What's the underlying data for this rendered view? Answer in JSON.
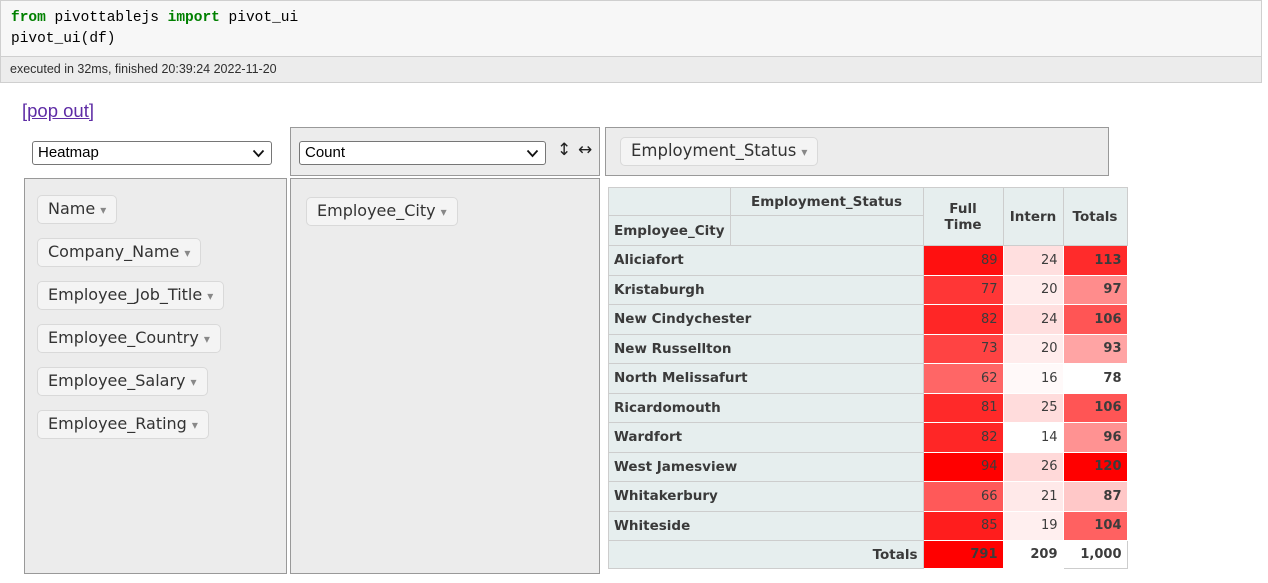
{
  "code_cell": {
    "line1_tokens": [
      {
        "text": "from",
        "keyword": true
      },
      {
        "text": " pivottablejs ",
        "keyword": false
      },
      {
        "text": "import",
        "keyword": true
      },
      {
        "text": " pivot_ui",
        "keyword": false
      }
    ],
    "line2": "pivot_ui(df)",
    "exec_info": "executed in 32ms, finished 20:39:24 2022-11-20"
  },
  "popout_link": "[pop out]",
  "pivot_ui": {
    "renderer_select": {
      "value": "Heatmap"
    },
    "aggregator_select": {
      "value": "Count"
    },
    "updown_arrow": "↕",
    "leftright_arrow": "↔",
    "triangle": "▾",
    "col_attrs": [
      {
        "label": "Employment_Status"
      }
    ],
    "row_attrs": [
      {
        "label": "Employee_City"
      }
    ],
    "unused_attrs": [
      {
        "label": "Name"
      },
      {
        "label": "Company_Name"
      },
      {
        "label": "Employee_Job_Title"
      },
      {
        "label": "Employee_Country"
      },
      {
        "label": "Employee_Salary"
      },
      {
        "label": "Employee_Rating"
      }
    ]
  },
  "table": {
    "col_axis_label": "Employment_Status",
    "row_axis_label": "Employee_City",
    "col_headers": [
      "Full Time",
      "Intern",
      "Totals"
    ],
    "rows": [
      {
        "label": "Aliciafort",
        "values": [
          "89",
          "24",
          "113"
        ],
        "colors": [
          "#FF1010",
          "#FFDFDF",
          "#FF2B2B"
        ]
      },
      {
        "label": "Kristaburgh",
        "values": [
          "77",
          "20",
          "97"
        ],
        "colors": [
          "#FF3636",
          "#FFECEC",
          "#FF8C8C"
        ]
      },
      {
        "label": "New Cindychester",
        "values": [
          "82",
          "24",
          "106"
        ],
        "colors": [
          "#FF2626",
          "#FFDFDF",
          "#FF5555"
        ]
      },
      {
        "label": "New Russellton",
        "values": [
          "73",
          "20",
          "93"
        ],
        "colors": [
          "#FF4343",
          "#FFECEC",
          "#FFA4A4"
        ]
      },
      {
        "label": "North Melissafurt",
        "values": [
          "62",
          "16",
          "78"
        ],
        "colors": [
          "#FF6666",
          "#FFF9F9",
          "#FFFFFF"
        ]
      },
      {
        "label": "Ricardomouth",
        "values": [
          "81",
          "25",
          "106"
        ],
        "colors": [
          "#FF2929",
          "#FFDCDC",
          "#FF5555"
        ]
      },
      {
        "label": "Wardfort",
        "values": [
          "82",
          "14",
          "96"
        ],
        "colors": [
          "#FF2626",
          "#FFFFFF",
          "#FF9292"
        ]
      },
      {
        "label": "West Jamesview",
        "values": [
          "94",
          "26",
          "120"
        ],
        "colors": [
          "#FF0000",
          "#FFD9D9",
          "#FF0000"
        ]
      },
      {
        "label": "Whitakerbury",
        "values": [
          "66",
          "21",
          "87"
        ],
        "colors": [
          "#FF5959",
          "#FFE9E9",
          "#FFC8C8"
        ]
      },
      {
        "label": "Whiteside",
        "values": [
          "85",
          "19",
          "104"
        ],
        "colors": [
          "#FF1D1D",
          "#FFEFEF",
          "#FF6161"
        ]
      }
    ],
    "totals_row": {
      "label": "Totals",
      "values": [
        "791",
        "209",
        "1,000"
      ],
      "colors": [
        "#FF0000",
        "#FFFFFF",
        "#FFFFFF"
      ]
    }
  },
  "chart_data": {
    "type": "heatmap",
    "aggregator": "Count",
    "row_attribute": "Employee_City",
    "col_attribute": "Employment_Status",
    "columns": [
      "Full Time",
      "Intern"
    ],
    "rows": [
      "Aliciafort",
      "Kristaburgh",
      "New Cindychester",
      "New Russellton",
      "North Melissafurt",
      "Ricardomouth",
      "Wardfort",
      "West Jamesview",
      "Whitakerbury",
      "Whiteside"
    ],
    "values": [
      [
        89,
        24
      ],
      [
        77,
        20
      ],
      [
        82,
        24
      ],
      [
        73,
        20
      ],
      [
        62,
        16
      ],
      [
        81,
        25
      ],
      [
        82,
        14
      ],
      [
        94,
        26
      ],
      [
        66,
        21
      ],
      [
        85,
        19
      ]
    ],
    "row_totals": [
      113,
      97,
      106,
      93,
      78,
      106,
      96,
      120,
      87,
      104
    ],
    "col_totals": [
      791,
      209
    ],
    "grand_total": 1000
  },
  "colors": {
    "keyword_green": "#008000",
    "link_purple": "#5e2ca5",
    "header_cell_bg": "#e6eeee",
    "cell_border": "#cdcdcd",
    "panel_bg": "#ececec",
    "heatmap_max": "#FF0000",
    "heatmap_min": "#FFFFFF"
  }
}
